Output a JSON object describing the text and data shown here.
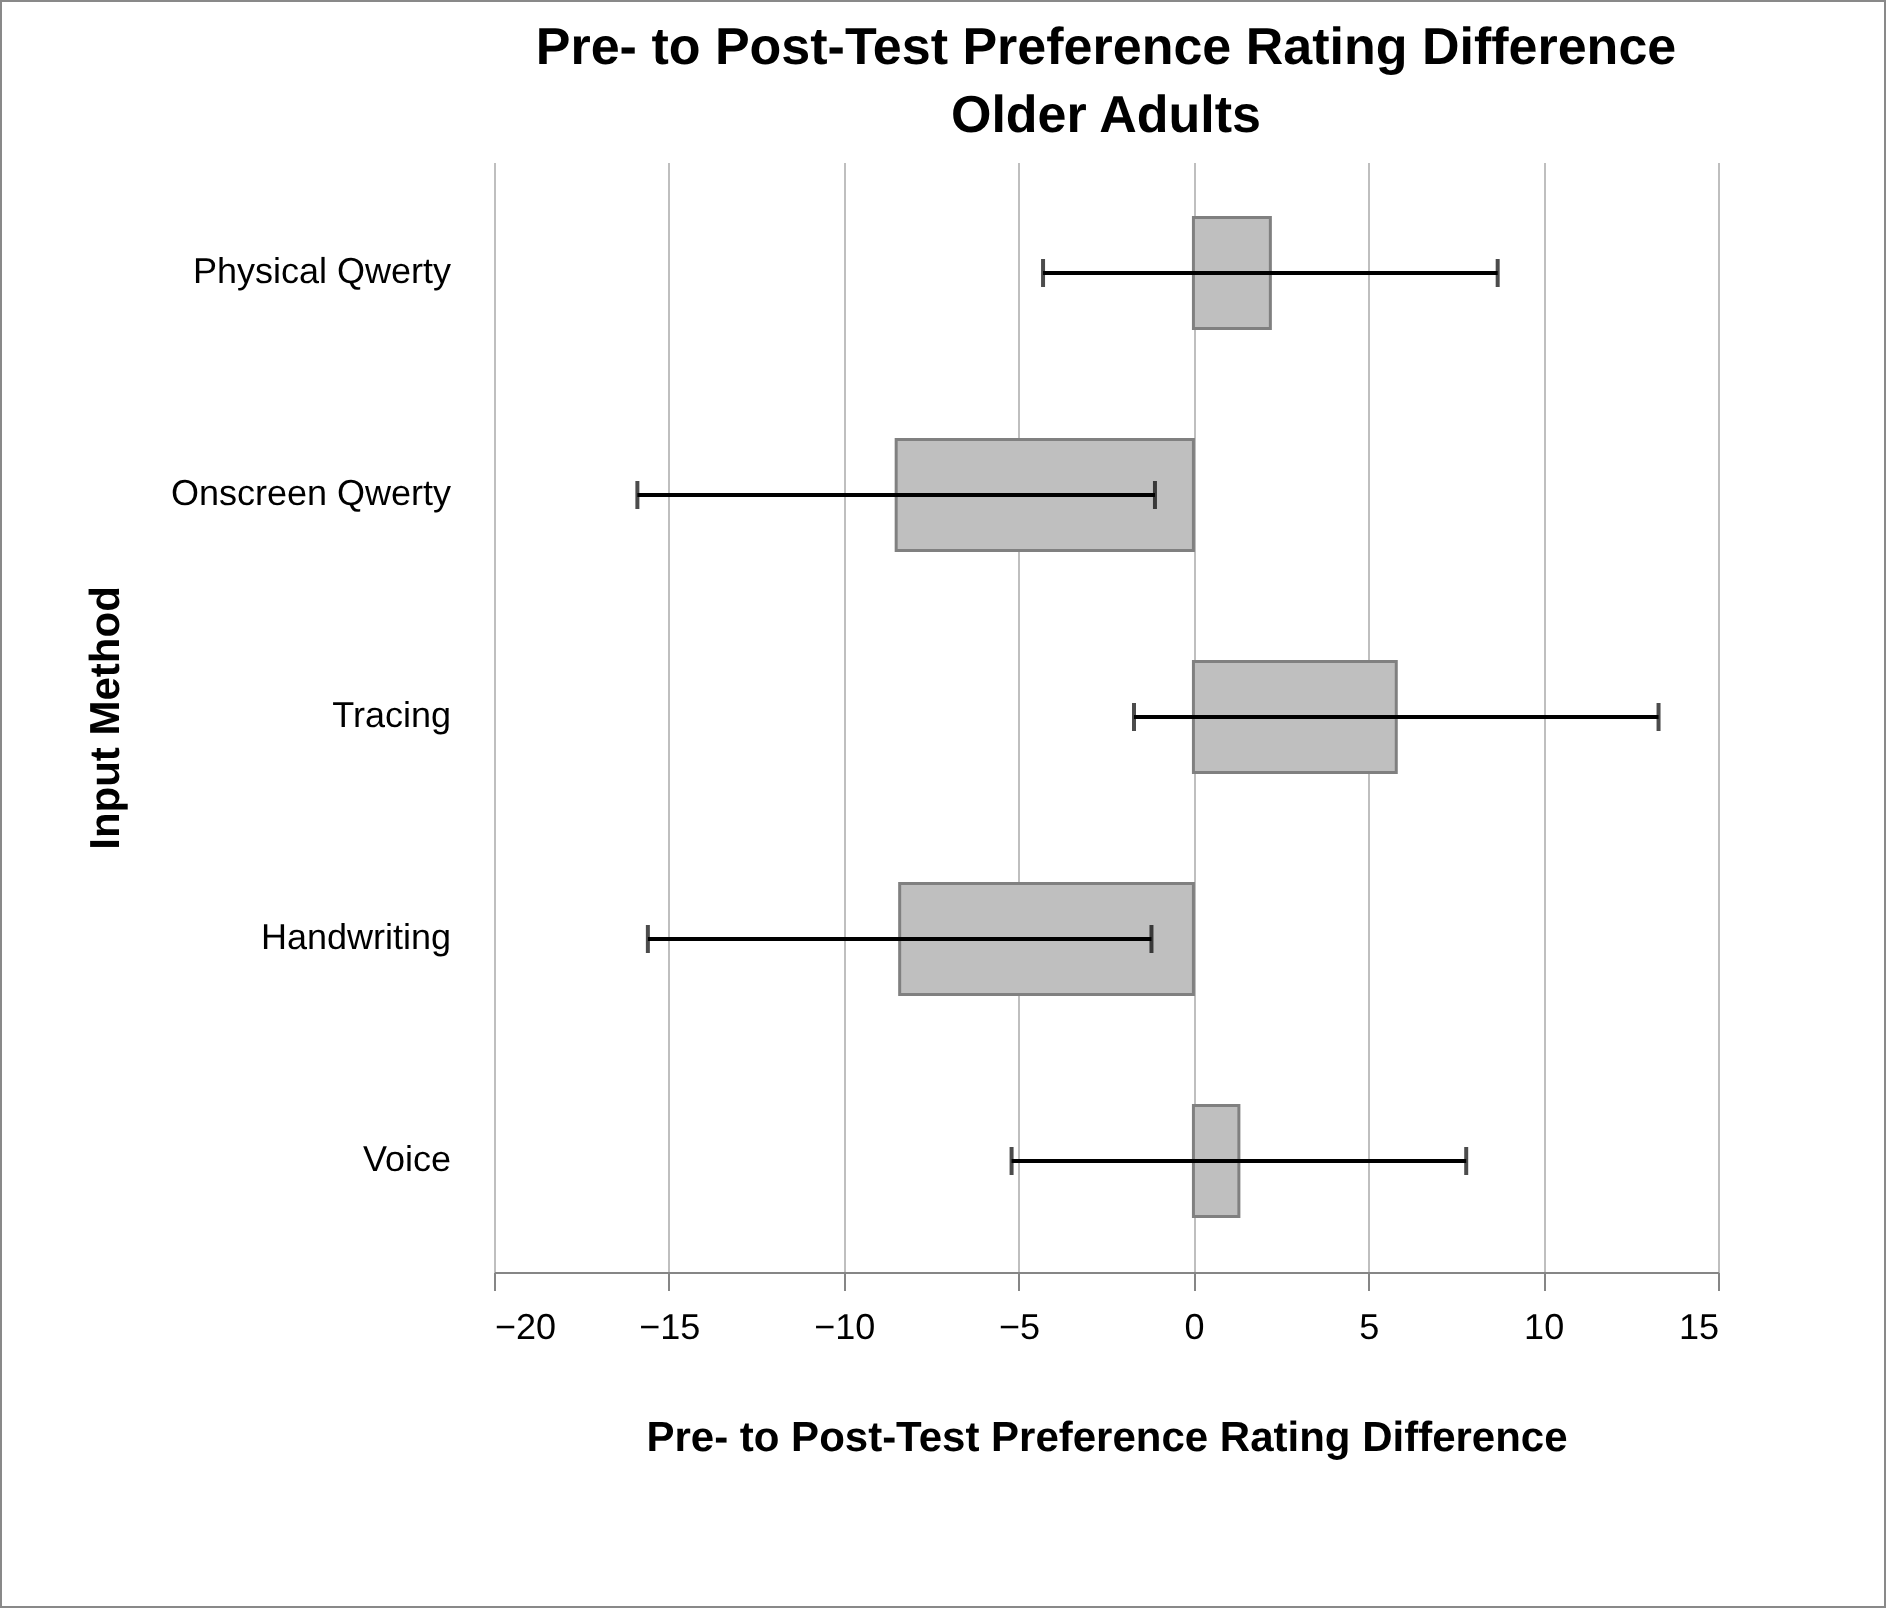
{
  "chart_data": {
    "type": "bar",
    "orientation": "horizontal",
    "title": "Pre- to Post-Test Preference Rating Difference",
    "subtitle": "Older Adults",
    "xlabel": "Pre- to Post-Test Preference Rating Difference",
    "ylabel": "Input Method",
    "categories": [
      "Physical Qwerty",
      "Onscreen Qwerty",
      "Tracing",
      "Handwriting",
      "Voice"
    ],
    "values": [
      2.2,
      -8.5,
      5.8,
      -8.4,
      1.3
    ],
    "errors": [
      6.5,
      7.4,
      7.5,
      7.2,
      6.5
    ],
    "color": "#bfbfbf",
    "xlim": [
      -20,
      15
    ],
    "xticks": [
      -20,
      -15,
      -10,
      -5,
      0,
      5,
      10,
      15
    ],
    "grid": "x"
  }
}
